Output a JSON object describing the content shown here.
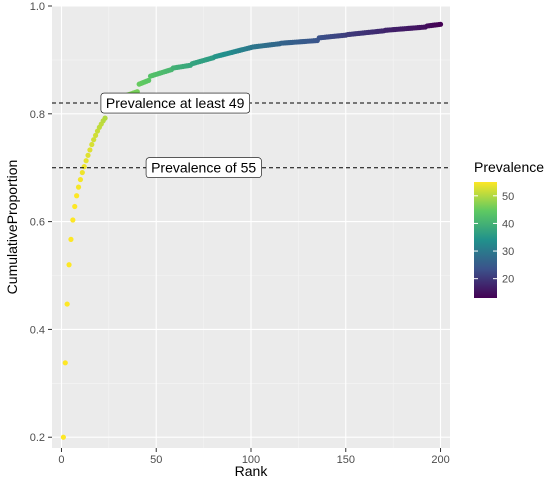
{
  "chart_data": {
    "type": "scatter",
    "title": "",
    "xlabel": "Rank",
    "ylabel": "CumulativeProportion",
    "xlim": [
      -5,
      205
    ],
    "ylim": [
      0.18,
      1.0
    ],
    "x_ticks": [
      0,
      50,
      100,
      150,
      200
    ],
    "x_tick_labels": [
      "0",
      "50",
      "100",
      "150",
      "200"
    ],
    "y_ticks": [
      0.2,
      0.4,
      0.6,
      0.8,
      1.0
    ],
    "y_tick_labels": [
      "0.2",
      "0.4",
      "0.6",
      "0.8",
      "1.0"
    ],
    "grid": true,
    "background": "#ebebeb",
    "color_scale": {
      "title": "Prevalence",
      "palette": "viridis",
      "min": 13,
      "max": 55,
      "ticks": [
        20,
        30,
        40,
        50
      ],
      "tick_labels": [
        "20",
        "30",
        "40",
        "50"
      ],
      "colors": [
        "#440154",
        "#3b528b",
        "#21918c",
        "#5ec962",
        "#fde725"
      ]
    },
    "reference_lines": [
      {
        "y": 0.82,
        "label": "Prevalence at least 49",
        "label_x": 60
      },
      {
        "y": 0.7,
        "label": "Prevalence of 55",
        "label_x": 75
      }
    ],
    "points_explicit": [
      {
        "x": 1,
        "y": 0.2,
        "v": 55
      },
      {
        "x": 2,
        "y": 0.338,
        "v": 55
      },
      {
        "x": 3,
        "y": 0.447,
        "v": 55
      },
      {
        "x": 4,
        "y": 0.52,
        "v": 55
      },
      {
        "x": 5,
        "y": 0.567,
        "v": 55
      },
      {
        "x": 6,
        "y": 0.603,
        "v": 55
      },
      {
        "x": 7,
        "y": 0.628,
        "v": 55
      },
      {
        "x": 8,
        "y": 0.648,
        "v": 55
      },
      {
        "x": 9,
        "y": 0.664,
        "v": 54.5
      },
      {
        "x": 10,
        "y": 0.678,
        "v": 54.5
      },
      {
        "x": 11,
        "y": 0.691,
        "v": 54
      },
      {
        "x": 12,
        "y": 0.702,
        "v": 54
      },
      {
        "x": 13,
        "y": 0.713,
        "v": 53.5
      },
      {
        "x": 14,
        "y": 0.723,
        "v": 53
      },
      {
        "x": 15,
        "y": 0.733,
        "v": 53
      },
      {
        "x": 16,
        "y": 0.743,
        "v": 52.5
      },
      {
        "x": 17,
        "y": 0.752,
        "v": 52
      },
      {
        "x": 18,
        "y": 0.76,
        "v": 52
      },
      {
        "x": 19,
        "y": 0.768,
        "v": 51.5
      },
      {
        "x": 20,
        "y": 0.775,
        "v": 51
      },
      {
        "x": 21,
        "y": 0.781,
        "v": 51
      },
      {
        "x": 22,
        "y": 0.787,
        "v": 50.5
      },
      {
        "x": 23,
        "y": 0.792,
        "v": 50
      }
    ],
    "segments": [
      {
        "x_start": 24,
        "x_end": 30,
        "y_start": 0.815,
        "y_end": 0.823,
        "v_start": 49,
        "v_end": 48
      },
      {
        "x_start": 31,
        "x_end": 40,
        "y_start": 0.83,
        "y_end": 0.841,
        "v_start": 47.5,
        "v_end": 46
      },
      {
        "x_start": 41,
        "x_end": 46,
        "y_start": 0.855,
        "y_end": 0.862,
        "v_start": 45,
        "v_end": 44
      },
      {
        "x_start": 47,
        "x_end": 58,
        "y_start": 0.87,
        "y_end": 0.882,
        "v_start": 43,
        "v_end": 41
      },
      {
        "x_start": 59,
        "x_end": 68,
        "y_start": 0.885,
        "y_end": 0.89,
        "v_start": 40,
        "v_end": 38
      },
      {
        "x_start": 69,
        "x_end": 80,
        "y_start": 0.893,
        "y_end": 0.904,
        "v_start": 37.5,
        "v_end": 36
      },
      {
        "x_start": 81,
        "x_end": 90,
        "y_start": 0.906,
        "y_end": 0.914,
        "v_start": 35,
        "v_end": 33
      },
      {
        "x_start": 91,
        "x_end": 100,
        "y_start": 0.915,
        "y_end": 0.923,
        "v_start": 32.5,
        "v_end": 30
      },
      {
        "x_start": 101,
        "x_end": 115,
        "y_start": 0.924,
        "y_end": 0.93,
        "v_start": 29.5,
        "v_end": 27
      },
      {
        "x_start": 116,
        "x_end": 135,
        "y_start": 0.931,
        "y_end": 0.936,
        "v_start": 26.5,
        "v_end": 24
      },
      {
        "x_start": 136,
        "x_end": 150,
        "y_start": 0.941,
        "y_end": 0.946,
        "v_start": 23.5,
        "v_end": 21
      },
      {
        "x_start": 151,
        "x_end": 170,
        "y_start": 0.947,
        "y_end": 0.954,
        "v_start": 20.5,
        "v_end": 18
      },
      {
        "x_start": 171,
        "x_end": 192,
        "y_start": 0.955,
        "y_end": 0.961,
        "v_start": 17.5,
        "v_end": 15
      },
      {
        "x_start": 193,
        "x_end": 200,
        "y_start": 0.963,
        "y_end": 0.966,
        "v_start": 14.5,
        "v_end": 13
      }
    ]
  }
}
